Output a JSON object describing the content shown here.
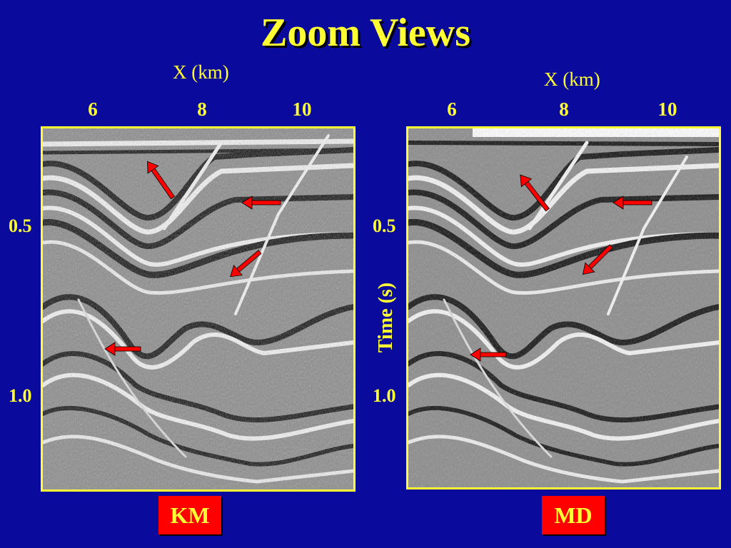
{
  "title": "Zoom Views",
  "left_panel": {
    "x_axis_label": "X (km)",
    "x_ticks": [
      "6",
      "8",
      "10"
    ],
    "y_ticks": [
      "0.5",
      "1.0"
    ],
    "tag": "KM",
    "image": "seismic-section"
  },
  "right_panel": {
    "x_axis_label": "X (km)",
    "x_ticks": [
      "6",
      "8",
      "10"
    ],
    "y_ticks": [
      "0.5",
      "1.0"
    ],
    "y_axis_label": "Time (s)",
    "tag": "MD",
    "image": "seismic-section"
  },
  "colors": {
    "background": "#0a0a9c",
    "text": "#ffff33",
    "frame": "#ffff33",
    "arrow": "#ff0000",
    "tag_background": "#ff0000"
  }
}
